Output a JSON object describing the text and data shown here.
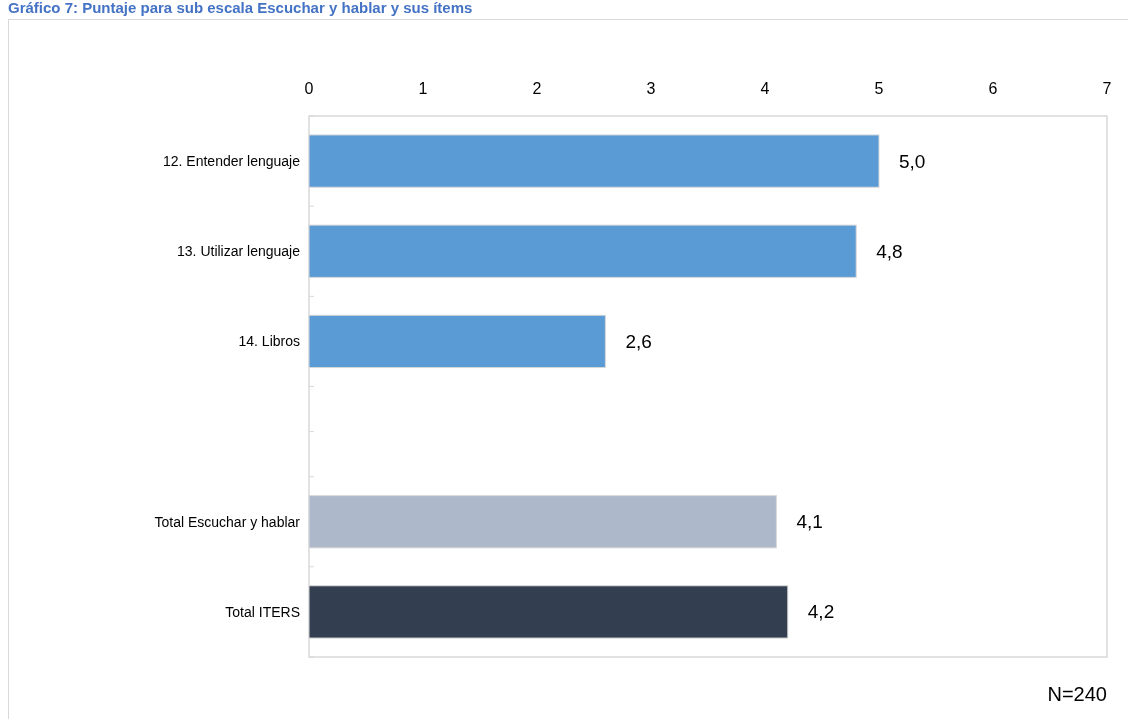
{
  "chart_data": {
    "type": "bar",
    "title": "Gráfico 7: Puntaje para sub escala Escuchar y hablar y sus ítems",
    "orientation": "horizontal",
    "categories": [
      "12. Entender lenguaje",
      "13. Utilizar lenguaje",
      "14. Libros",
      null,
      "Total Escuchar y hablar",
      "Total ITERS"
    ],
    "values": [
      5.0,
      4.8,
      2.6,
      null,
      4.1,
      4.2
    ],
    "colors": [
      "#5b9bd5",
      "#5b9bd5",
      "#5b9bd5",
      null,
      "#adb9ca",
      "#333f50"
    ],
    "value_labels": [
      "5,0",
      "4,8",
      "2,6",
      null,
      "4,1",
      "4,2"
    ],
    "xlim": [
      0,
      7
    ],
    "xticks": [
      0,
      1,
      2,
      3,
      4,
      5,
      6,
      7
    ],
    "annotations": [
      "N=240"
    ]
  }
}
